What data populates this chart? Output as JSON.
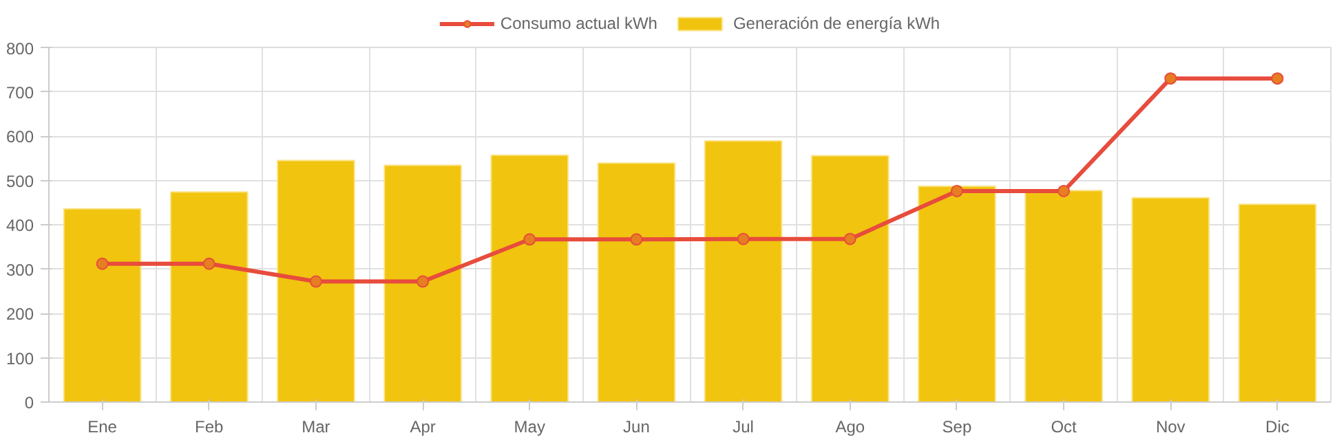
{
  "chart_data": {
    "type": "bar",
    "categories": [
      "Ene",
      "Feb",
      "Mar",
      "Apr",
      "May",
      "Jun",
      "Jul",
      "Ago",
      "Sep",
      "Oct",
      "Nov",
      "Dic"
    ],
    "series": [
      {
        "name": "Consumo actual kWh",
        "type": "line",
        "color": "#e74c3c",
        "values": [
          312,
          312,
          272,
          272,
          367,
          367,
          368,
          368,
          476,
          476,
          730,
          730
        ]
      },
      {
        "name": "Generación de energía kWh",
        "color": "#f1c40f",
        "values": [
          436,
          474,
          545,
          534,
          557,
          539,
          589,
          556,
          487,
          477,
          461,
          446
        ]
      }
    ],
    "ylim": [
      0,
      800
    ],
    "yticks": [
      0,
      100,
      200,
      300,
      400,
      500,
      600,
      700,
      800
    ],
    "grid": true,
    "legend": "top",
    "marker": "circle",
    "line_style": "solid"
  }
}
